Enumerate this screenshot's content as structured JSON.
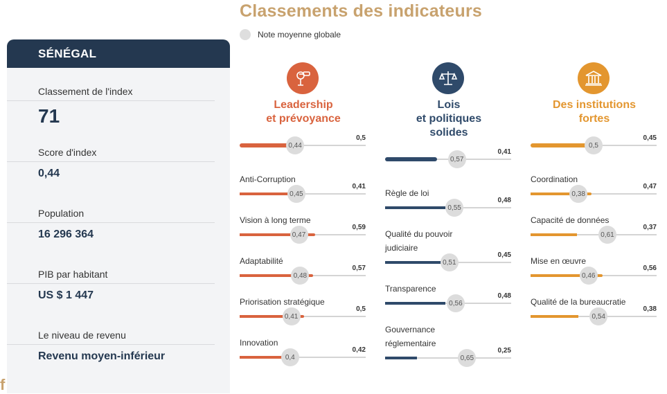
{
  "header": {
    "title": "Classements des indicateurs",
    "legend_label": "Note moyenne globale"
  },
  "country": {
    "name": "SÉNÉGAL",
    "stats": [
      {
        "label": "Classement de l'index",
        "value": "71"
      },
      {
        "label": "Score d'index",
        "value": "0,44"
      },
      {
        "label": "Population",
        "value": "16 296 364"
      },
      {
        "label": "PIB par habitant",
        "value": "US $ 1 447"
      },
      {
        "label": "Le niveau de revenu",
        "value": "Revenu moyen-inférieur"
      }
    ],
    "corner_glyph": "f"
  },
  "categories": [
    {
      "title_lines": [
        "Leadership",
        "et prévoyance"
      ],
      "color": "#d9633e",
      "icon": "binoculars-icon",
      "overall": {
        "score": "0,5",
        "score_num": 0.5,
        "avg": "0,44",
        "avg_num": 0.44
      },
      "items": [
        {
          "label": "Anti-Corruption",
          "score": "0,41",
          "score_num": 0.41,
          "avg": "0,45",
          "avg_num": 0.45
        },
        {
          "label": "Vision à long terme",
          "score": "0,59",
          "score_num": 0.59,
          "avg": "0,47",
          "avg_num": 0.47
        },
        {
          "label": "Adaptabilité",
          "score": "0,57",
          "score_num": 0.57,
          "avg": "0,48",
          "avg_num": 0.48
        },
        {
          "label": "Priorisation stratégique",
          "score": "0,5",
          "score_num": 0.5,
          "avg": "0,41",
          "avg_num": 0.41
        },
        {
          "label": "Innovation",
          "score": "0,42",
          "score_num": 0.42,
          "avg": "0,4",
          "avg_num": 0.4
        }
      ]
    },
    {
      "title_lines": [
        "Lois",
        "et politiques",
        "solides"
      ],
      "color": "#2f4a6a",
      "icon": "scales-icon",
      "overall": {
        "score": "0,41",
        "score_num": 0.41,
        "avg": "0,57",
        "avg_num": 0.57
      },
      "items": [
        {
          "label": "Règle de loi",
          "score": "0,48",
          "score_num": 0.48,
          "avg": "0,55",
          "avg_num": 0.55
        },
        {
          "label": "Qualité du pouvoir judiciaire",
          "score": "0,45",
          "score_num": 0.45,
          "avg": "0,51",
          "avg_num": 0.51
        },
        {
          "label": "Transparence",
          "score": "0,48",
          "score_num": 0.48,
          "avg": "0,56",
          "avg_num": 0.56
        },
        {
          "label": "Gouvernance réglementaire",
          "score": "0,25",
          "score_num": 0.25,
          "avg": "0,65",
          "avg_num": 0.65
        }
      ]
    },
    {
      "title_lines": [
        "Des institutions",
        "fortes"
      ],
      "color": "#e3962f",
      "icon": "institution-icon",
      "overall": {
        "score": "0,45",
        "score_num": 0.45,
        "avg": "0,5",
        "avg_num": 0.5
      },
      "items": [
        {
          "label": "Coordination",
          "score": "0,47",
          "score_num": 0.47,
          "avg": "0,38",
          "avg_num": 0.38
        },
        {
          "label": "Capacité de données",
          "score": "0,37",
          "score_num": 0.37,
          "avg": "0,61",
          "avg_num": 0.61
        },
        {
          "label": "Mise en œuvre",
          "score": "0,56",
          "score_num": 0.56,
          "avg": "0,46",
          "avg_num": 0.46
        },
        {
          "label": "Qualité de la bureaucratie",
          "score": "0,38",
          "score_num": 0.38,
          "avg": "0,54",
          "avg_num": 0.54
        }
      ]
    }
  ]
}
